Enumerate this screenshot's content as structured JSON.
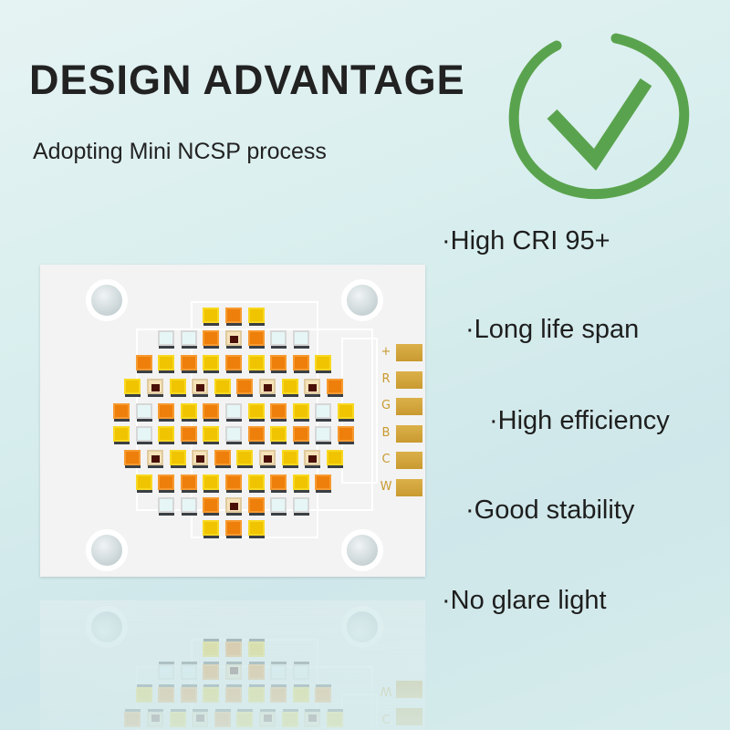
{
  "header": {
    "title": "DESIGN ADVANTAGE",
    "subtitle": "Adopting Mini NCSP process"
  },
  "badge": {
    "icon": "check-circle-icon",
    "color": "#5aa34e"
  },
  "features": [
    "·High CRI 95+",
    "·Long life span",
    "·High efficiency",
    "·Good stability",
    "·No glare light"
  ],
  "board": {
    "pad_labels": [
      "+",
      "R",
      "G",
      "B",
      "C",
      "W"
    ],
    "led_colors": {
      "Y": "#f0c400",
      "O": "#ee7f0a",
      "W": "#e6f6f6",
      "R": "#4a1008"
    },
    "led_rows": [
      "YOY",
      "WWOROWW",
      "OYOYOYOOY",
      "YRYRYORYRO",
      "OWOYOWYOYWY",
      "YWYOYWOYOWO",
      "ORYROYRYRY",
      "YOOYOYOYO",
      "WWOROWW",
      "YOY"
    ]
  }
}
